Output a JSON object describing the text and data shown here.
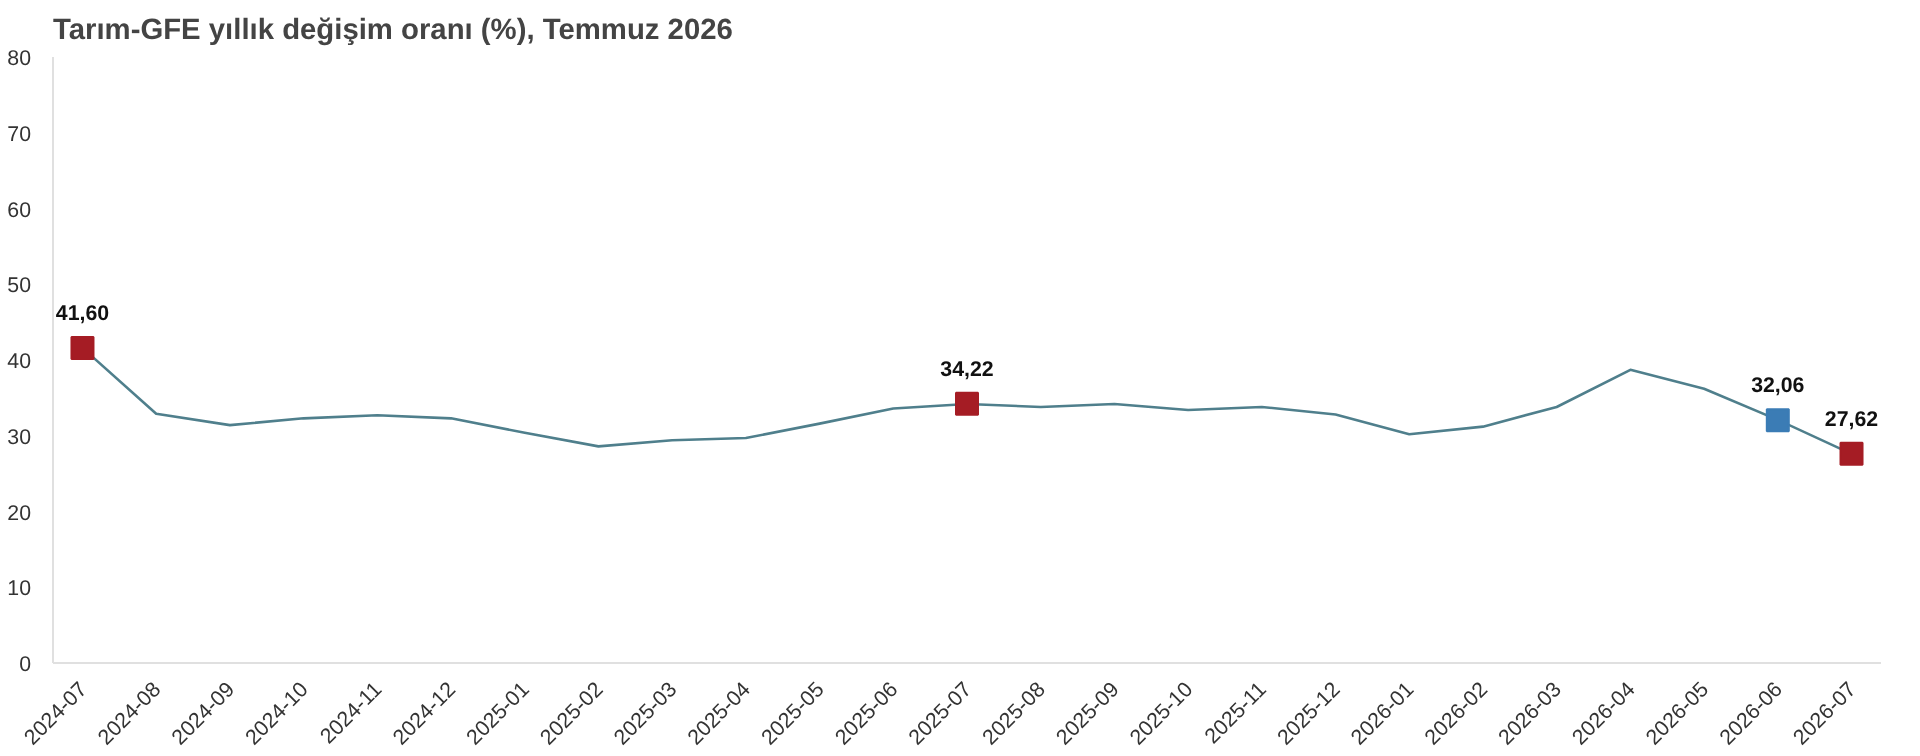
{
  "chart_data": {
    "type": "line",
    "title": "Tarım-GFE yıllık değişim oranı (%), Temmuz 2026",
    "categories": [
      "2024-07",
      "2024-08",
      "2024-09",
      "2024-10",
      "2024-11",
      "2024-12",
      "2025-01",
      "2025-02",
      "2025-03",
      "2025-04",
      "2025-05",
      "2025-06",
      "2025-07",
      "2025-08",
      "2025-09",
      "2025-10",
      "2025-11",
      "2025-12",
      "2026-01",
      "2026-02",
      "2026-03",
      "2026-04",
      "2026-05",
      "2026-06",
      "2026-07"
    ],
    "series": [
      {
        "color": "#4f7f8c",
        "marker": "none",
        "values": [
          41.6,
          32.9,
          31.4,
          32.3,
          32.7,
          32.3,
          30.4,
          28.6,
          29.4,
          29.7,
          31.6,
          33.6,
          34.2,
          33.8,
          34.2,
          33.4,
          33.8,
          32.8,
          30.2,
          31.2,
          33.8,
          38.7,
          36.2,
          32.1,
          27.6
        ]
      },
      {
        "type": "scatter",
        "marker": "square",
        "values": [
          41.6,
          null,
          null,
          null,
          null,
          null,
          null,
          null,
          null,
          null,
          null,
          null,
          34.22,
          null,
          null,
          null,
          null,
          null,
          null,
          null,
          null,
          null,
          null,
          32.06,
          27.62
        ],
        "colors": [
          "#a51c24",
          null,
          null,
          null,
          null,
          null,
          null,
          null,
          null,
          null,
          null,
          null,
          "#a51c24",
          null,
          null,
          null,
          null,
          null,
          null,
          null,
          null,
          null,
          null,
          "#3b7cb5",
          "#a51c24"
        ],
        "value_labels": [
          "41,60",
          null,
          null,
          null,
          null,
          null,
          null,
          null,
          null,
          null,
          null,
          null,
          "34,22",
          null,
          null,
          null,
          null,
          null,
          null,
          null,
          null,
          null,
          null,
          "32,06",
          "27,62"
        ]
      }
    ],
    "ylim": [
      0,
      80
    ],
    "yticks": [
      0,
      10,
      20,
      30,
      40,
      50,
      60,
      70,
      80
    ],
    "grid": false
  }
}
